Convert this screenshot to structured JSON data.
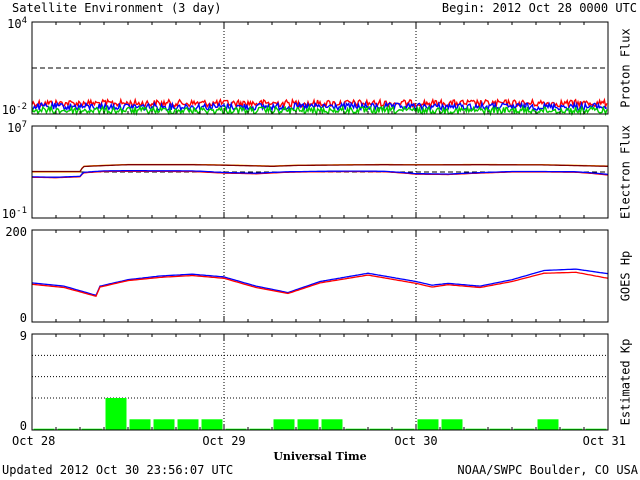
{
  "header": {
    "title": "Satellite Environment (3 day)",
    "begin": "Begin:  2012 Oct 28 0000 UTC"
  },
  "footer": {
    "updated": "Updated 2012 Oct 30 23:56:07 UTC",
    "credit": "NOAA/SWPC Boulder, CO USA"
  },
  "chart_data": [
    {
      "type": "line",
      "ylabel": "Proton Flux",
      "y_scale": "log",
      "ylim": [
        0.01,
        10000
      ],
      "ytick_labels": [
        {
          "base": "10",
          "exp": "4",
          "value": 10000
        },
        {
          "base": "10",
          "exp": "-2",
          "value": 0.01
        }
      ],
      "threshold": 10,
      "series": [
        {
          "color": "#ff0000",
          "noisy": true,
          "x": [
            0,
            24,
            48,
            72
          ],
          "values": [
            0.05,
            0.05,
            0.05,
            0.05
          ]
        },
        {
          "color": "#0000ff",
          "noisy": true,
          "x": [
            0,
            24,
            48,
            72
          ],
          "values": [
            0.03,
            0.03,
            0.03,
            0.03
          ]
        },
        {
          "color": "#00cc00",
          "noisy": true,
          "x": [
            0,
            24,
            48,
            72
          ],
          "values": [
            0.017,
            0.017,
            0.017,
            0.017
          ]
        }
      ]
    },
    {
      "type": "line",
      "ylabel": "Electron Flux",
      "y_scale": "log",
      "ylim": [
        0.1,
        10000000
      ],
      "ytick_labels": [
        {
          "base": "10",
          "exp": "7",
          "value": 10000000
        },
        {
          "base": "10",
          "exp": "-1",
          "value": 0.1
        }
      ],
      "threshold": 1000,
      "series": [
        {
          "color": "#ffa500",
          "x": [
            0,
            6,
            6.5,
            12,
            20,
            24,
            30,
            33,
            36,
            44,
            48,
            56,
            64,
            72
          ],
          "values": [
            1000,
            1000,
            3200,
            4500,
            4500,
            4100,
            3300,
            3900,
            4100,
            4500,
            4300,
            4500,
            4300,
            3300
          ]
        },
        {
          "color": "#800000",
          "x": [
            0,
            6,
            6.5,
            12,
            20,
            24,
            30,
            33,
            36,
            44,
            48,
            56,
            64,
            72
          ],
          "values": [
            1100,
            1100,
            3000,
            4300,
            4300,
            3900,
            3100,
            3700,
            3900,
            4300,
            4100,
            4300,
            4100,
            3100
          ]
        },
        {
          "color": "#ff0000",
          "x": [
            0,
            3,
            6,
            6.5,
            9,
            12,
            20,
            24,
            28,
            32,
            36,
            40,
            44,
            48,
            52,
            56,
            60,
            64,
            68,
            72
          ],
          "values": [
            350,
            320,
            380,
            850,
            1100,
            1150,
            1100,
            800,
            700,
            950,
            1050,
            1100,
            1050,
            650,
            600,
            800,
            1000,
            1000,
            950,
            550
          ]
        },
        {
          "color": "#0000ff",
          "x": [
            0,
            3,
            6,
            6.5,
            9,
            12,
            20,
            24,
            28,
            32,
            36,
            40,
            44,
            48,
            52,
            56,
            60,
            64,
            68,
            72
          ],
          "values": [
            380,
            350,
            420,
            950,
            1250,
            1300,
            1250,
            900,
            780,
            1050,
            1150,
            1200,
            1150,
            720,
            660,
            880,
            1100,
            1100,
            1050,
            620
          ]
        }
      ]
    },
    {
      "type": "line",
      "ylabel": "GOES Hp",
      "ylim": [
        0,
        200
      ],
      "ytick_labels": [
        {
          "base": "200",
          "value": 200
        },
        {
          "base": "0",
          "value": 0
        }
      ],
      "series": [
        {
          "color": "#0000ff",
          "x": [
            0,
            4,
            8,
            8.5,
            12,
            16,
            20,
            24,
            28,
            32,
            36,
            42,
            48,
            50,
            52,
            56,
            60,
            64,
            68,
            72
          ],
          "values": [
            85,
            78,
            58,
            78,
            92,
            100,
            104,
            98,
            78,
            64,
            88,
            106,
            88,
            80,
            84,
            78,
            92,
            112,
            115,
            105
          ]
        },
        {
          "color": "#ff0000",
          "x": [
            0,
            4,
            8,
            8.5,
            12,
            16,
            20,
            24,
            28,
            32,
            36,
            42,
            48,
            50,
            52,
            56,
            60,
            64,
            68,
            72
          ],
          "values": [
            82,
            75,
            56,
            76,
            90,
            97,
            101,
            95,
            75,
            62,
            85,
            102,
            84,
            76,
            81,
            75,
            88,
            106,
            108,
            95
          ]
        }
      ]
    },
    {
      "type": "bar",
      "ylabel": "Estimated Kp",
      "ylim": [
        0,
        9
      ],
      "ytick_labels": [
        {
          "base": "9",
          "value": 9
        },
        {
          "base": "0",
          "value": 0
        }
      ],
      "grid_y": [
        3,
        5,
        7
      ],
      "bar_color": "#00ff00",
      "bar_hours": 3,
      "values": [
        0,
        0,
        0,
        3,
        1,
        1,
        1,
        1,
        0,
        0,
        1,
        1,
        1,
        0,
        0,
        0,
        1,
        1,
        0,
        0,
        0,
        1,
        0,
        0
      ]
    }
  ],
  "x_axis": {
    "tick_labels": [
      "Oct 28",
      "Oct 29",
      "Oct 30",
      "Oct 31"
    ],
    "tick_hours": [
      0,
      24,
      48,
      72
    ],
    "label": "Universal Time",
    "range_hours": [
      0,
      72
    ]
  }
}
